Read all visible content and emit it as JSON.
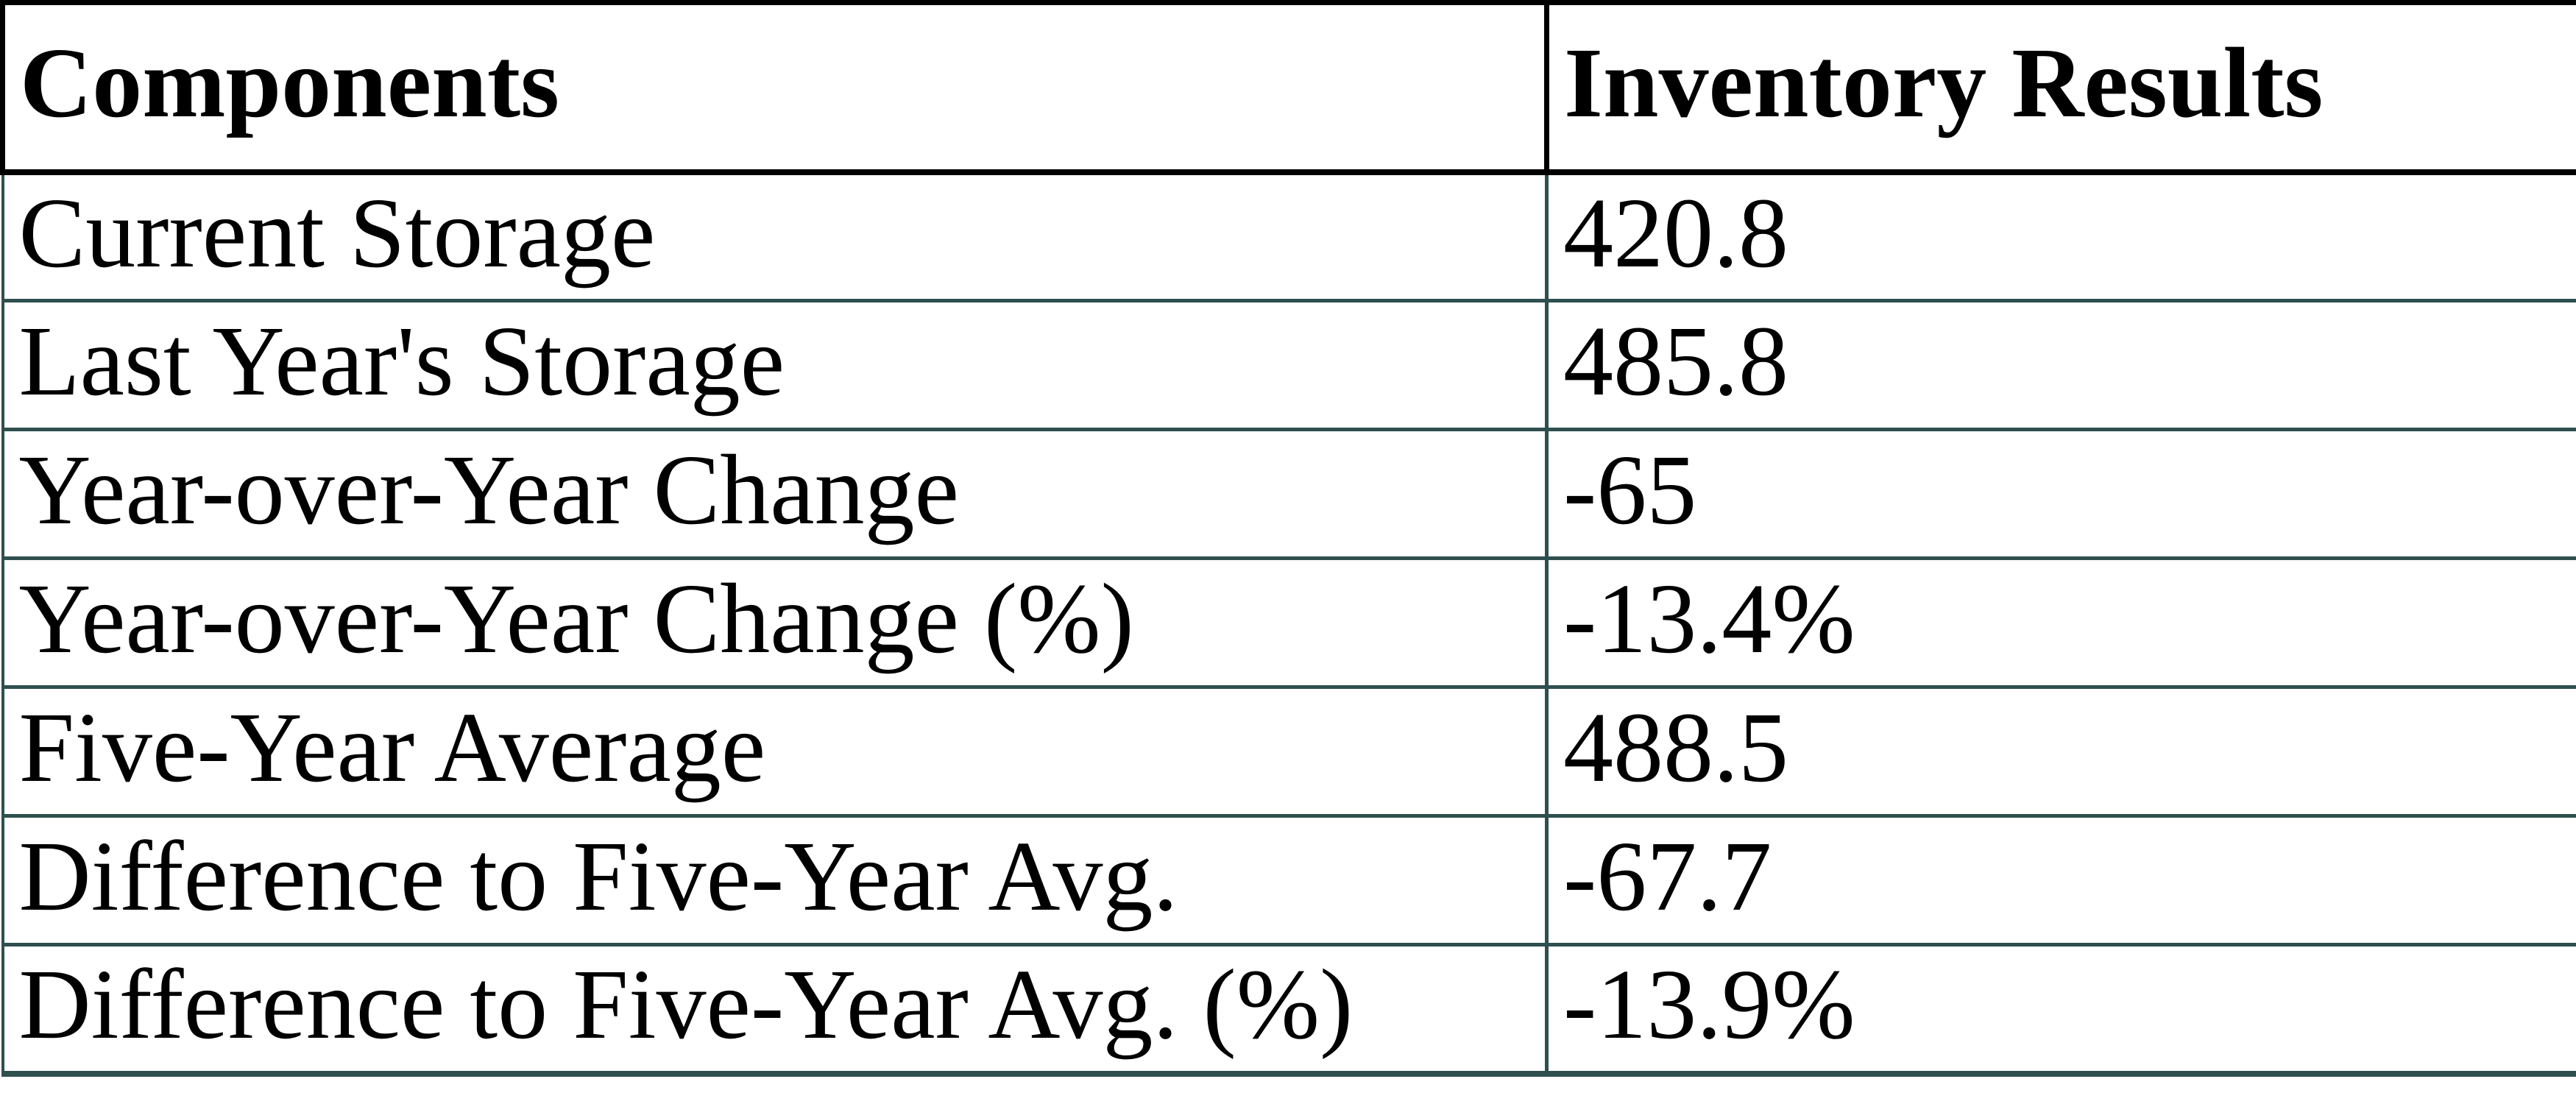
{
  "table": {
    "headers": [
      "Components",
      "Inventory Results"
    ],
    "rows": [
      {
        "component": "Current Storage",
        "value": "420.8"
      },
      {
        "component": "Last Year's Storage",
        "value": "485.8"
      },
      {
        "component": "Year-over-Year Change",
        "value": "-65"
      },
      {
        "component": "Year-over-Year Change (%)",
        "value": "-13.4%"
      },
      {
        "component": "Five-Year Average",
        "value": "488.5"
      },
      {
        "component": "Difference to Five-Year Avg.",
        "value": "-67.7"
      },
      {
        "component": "Difference to Five-Year Avg. (%)",
        "value": "-13.9%"
      }
    ]
  },
  "colors": {
    "header_border": "#000000",
    "body_border": "#2F4F4F",
    "text": "#000000",
    "background": "#FFFFFF"
  },
  "chart_data": {
    "type": "table",
    "columns": [
      "Components",
      "Inventory Results"
    ],
    "rows": [
      [
        "Current Storage",
        420.8
      ],
      [
        "Last Year's Storage",
        485.8
      ],
      [
        "Year-over-Year Change",
        -65
      ],
      [
        "Year-over-Year Change (%)",
        "-13.4%"
      ],
      [
        "Five-Year Average",
        488.5
      ],
      [
        "Difference to Five-Year Avg.",
        -67.7
      ],
      [
        "Difference to Five-Year Avg. (%)",
        "-13.9%"
      ]
    ]
  }
}
